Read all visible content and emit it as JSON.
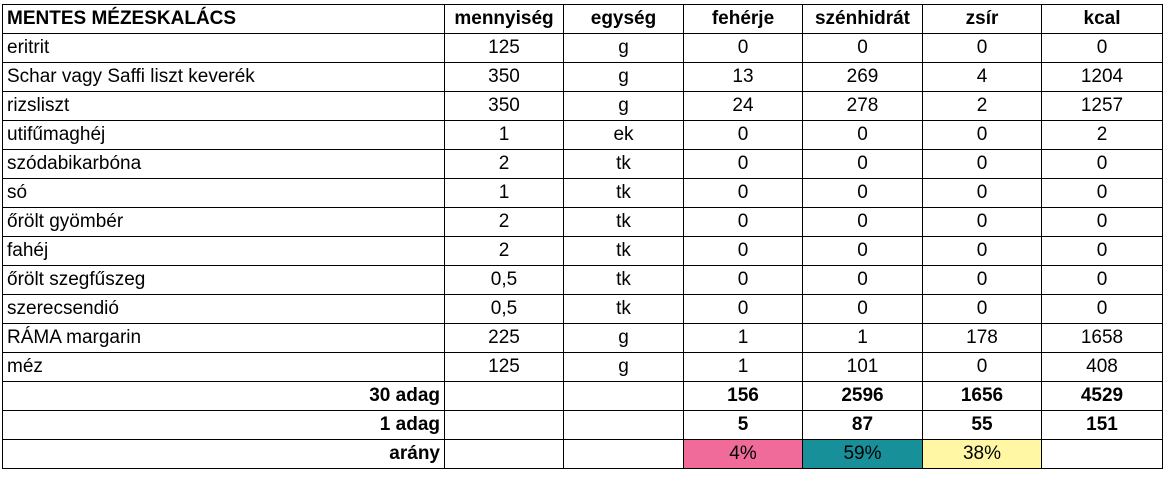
{
  "header": {
    "title": "MENTES MÉZESKALÁCS",
    "cols": [
      "mennyiség",
      "egység",
      "fehérje",
      "szénhidrát",
      "zsír",
      "kcal"
    ]
  },
  "rows": [
    {
      "name": "eritrit",
      "qty": "125",
      "unit": "g",
      "protein": "0",
      "carb": "0",
      "fat": "0",
      "kcal": "0"
    },
    {
      "name": "Schar vagy Saffi liszt keverék",
      "qty": "350",
      "unit": "g",
      "protein": "13",
      "carb": "269",
      "fat": "4",
      "kcal": "1204"
    },
    {
      "name": "rizsliszt",
      "qty": "350",
      "unit": "g",
      "protein": "24",
      "carb": "278",
      "fat": "2",
      "kcal": "1257"
    },
    {
      "name": "utifűmaghéj",
      "qty": "1",
      "unit": "ek",
      "protein": "0",
      "carb": "0",
      "fat": "0",
      "kcal": "2"
    },
    {
      "name": "szódabikarbóna",
      "qty": "2",
      "unit": "tk",
      "protein": "0",
      "carb": "0",
      "fat": "0",
      "kcal": "0"
    },
    {
      "name": "só",
      "qty": "1",
      "unit": "tk",
      "protein": "0",
      "carb": "0",
      "fat": "0",
      "kcal": "0"
    },
    {
      "name": "őrölt gyömbér",
      "qty": "2",
      "unit": "tk",
      "protein": "0",
      "carb": "0",
      "fat": "0",
      "kcal": "0"
    },
    {
      "name": "fahéj",
      "qty": "2",
      "unit": "tk",
      "protein": "0",
      "carb": "0",
      "fat": "0",
      "kcal": "0"
    },
    {
      "name": "őrölt szegfűszeg",
      "qty": "0,5",
      "unit": "tk",
      "protein": "0",
      "carb": "0",
      "fat": "0",
      "kcal": "0"
    },
    {
      "name": "szerecsendió",
      "qty": "0,5",
      "unit": "tk",
      "protein": "0",
      "carb": "0",
      "fat": "0",
      "kcal": "0"
    },
    {
      "name": "RÁMA margarin",
      "qty": "225",
      "unit": "g",
      "protein": "1",
      "carb": "1",
      "fat": "178",
      "kcal": "1658"
    },
    {
      "name": "méz",
      "qty": "125",
      "unit": "g",
      "protein": "1",
      "carb": "101",
      "fat": "0",
      "kcal": "408"
    }
  ],
  "totals": {
    "label": "30 adag",
    "protein": "156",
    "carb": "2596",
    "fat": "1656",
    "kcal": "4529"
  },
  "per_serving": {
    "label": "1 adag",
    "protein": "5",
    "carb": "87",
    "fat": "55",
    "kcal": "151"
  },
  "ratio": {
    "label": "arány",
    "protein": "4%",
    "carb": "59%",
    "fat": "38%"
  },
  "colors": {
    "protein": "#f06b9a",
    "carb": "#17909a",
    "fat": "#fff7a3"
  }
}
